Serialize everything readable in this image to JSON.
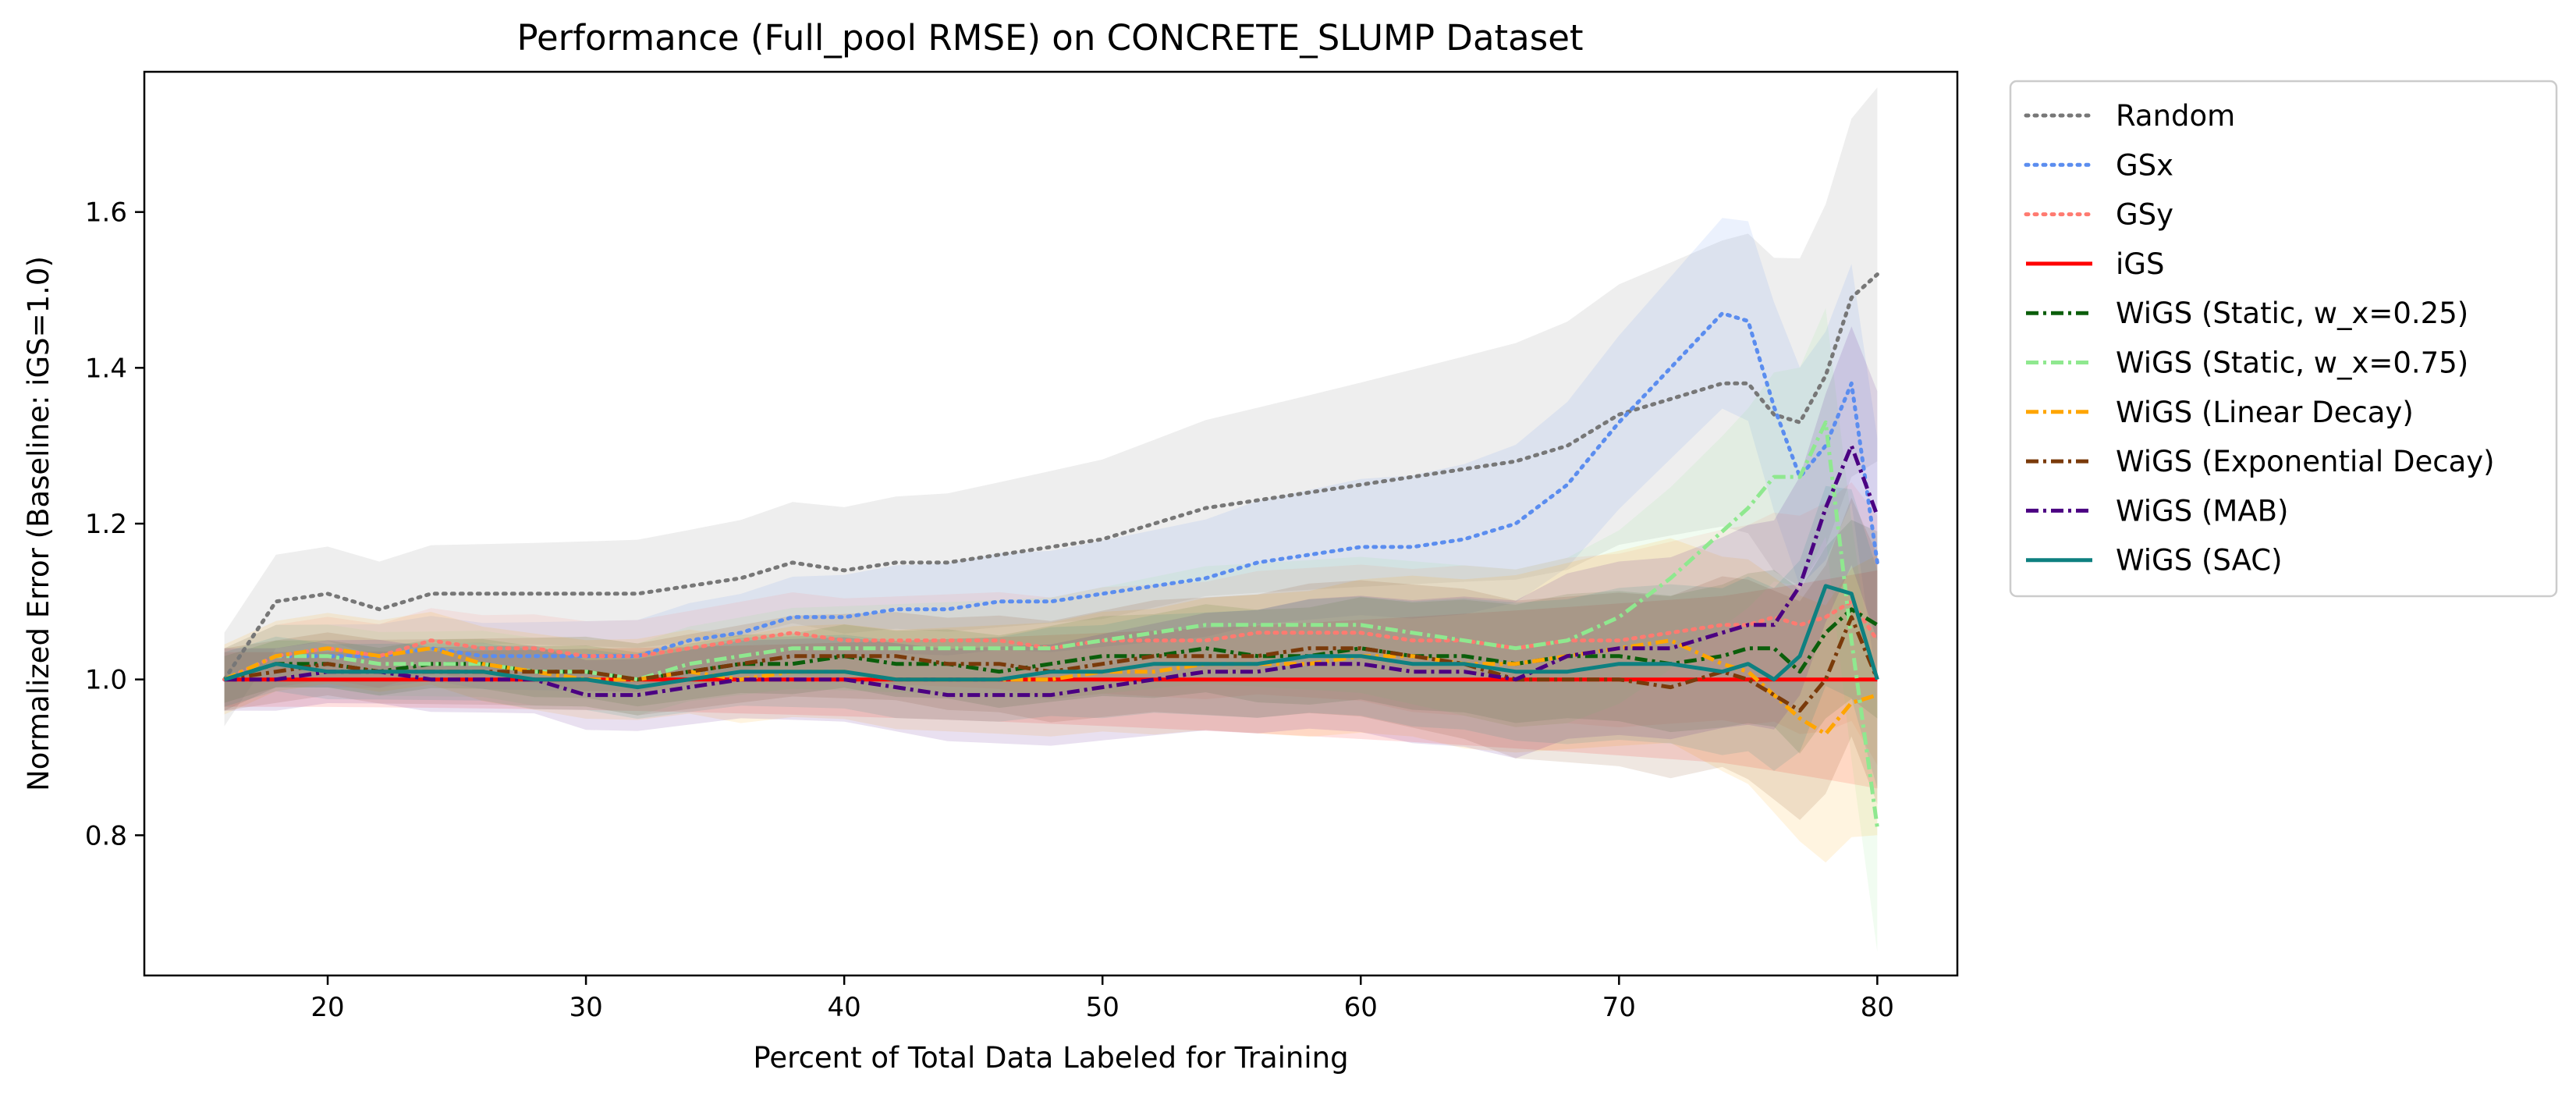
{
  "chart_data": {
    "type": "line",
    "title": "Performance (Full_pool RMSE) on CONCRETE_SLUMP Dataset",
    "xlabel": "Percent of Total Data Labeled for Training",
    "ylabel": "Normalized Error (Baseline: iGS=1.0)",
    "xlim": [
      12.9,
      83.1
    ],
    "ylim": [
      0.62,
      1.78
    ],
    "xticks": [
      20,
      30,
      40,
      50,
      60,
      70,
      80
    ],
    "yticks": [
      0.8,
      1.0,
      1.2,
      1.4,
      1.6
    ],
    "grid": false,
    "legend_position": "outside-right",
    "x": [
      16,
      18,
      20,
      22,
      24,
      26,
      28,
      30,
      32,
      34,
      36,
      38,
      40,
      42,
      44,
      46,
      48,
      50,
      52,
      54,
      56,
      58,
      60,
      62,
      64,
      66,
      68,
      70,
      72,
      74,
      75,
      76,
      77,
      78,
      79,
      80
    ],
    "series": [
      {
        "name": "Random",
        "color": "#777777",
        "style": "dotted",
        "band": 0.06,
        "values": [
          1.0,
          1.1,
          1.11,
          1.09,
          1.11,
          1.11,
          1.11,
          1.11,
          1.11,
          1.12,
          1.13,
          1.15,
          1.14,
          1.15,
          1.15,
          1.16,
          1.17,
          1.18,
          1.2,
          1.22,
          1.23,
          1.24,
          1.25,
          1.26,
          1.27,
          1.28,
          1.3,
          1.34,
          1.36,
          1.38,
          1.38,
          1.34,
          1.33,
          1.39,
          1.49,
          1.52
        ]
      },
      {
        "name": "GSx",
        "color": "#5b8def",
        "style": "dotted",
        "band": 0.04,
        "values": [
          1.0,
          1.03,
          1.03,
          1.03,
          1.04,
          1.03,
          1.03,
          1.03,
          1.03,
          1.05,
          1.06,
          1.08,
          1.08,
          1.09,
          1.09,
          1.1,
          1.1,
          1.11,
          1.12,
          1.13,
          1.15,
          1.16,
          1.17,
          1.17,
          1.18,
          1.2,
          1.25,
          1.33,
          1.4,
          1.47,
          1.46,
          1.35,
          1.26,
          1.3,
          1.38,
          1.15
        ]
      },
      {
        "name": "GSy",
        "color": "#ff7a70",
        "style": "dotted",
        "band": 0.04,
        "values": [
          1.0,
          1.03,
          1.04,
          1.03,
          1.05,
          1.04,
          1.04,
          1.03,
          1.03,
          1.04,
          1.05,
          1.06,
          1.05,
          1.05,
          1.05,
          1.05,
          1.04,
          1.05,
          1.05,
          1.05,
          1.06,
          1.06,
          1.06,
          1.05,
          1.05,
          1.04,
          1.05,
          1.05,
          1.06,
          1.07,
          1.07,
          1.08,
          1.07,
          1.08,
          1.1,
          1.05
        ]
      },
      {
        "name": "iGS",
        "color": "#ff0000",
        "style": "solid",
        "band": 0.035,
        "values": [
          1.0,
          1.0,
          1.0,
          1.0,
          1.0,
          1.0,
          1.0,
          1.0,
          1.0,
          1.0,
          1.0,
          1.0,
          1.0,
          1.0,
          1.0,
          1.0,
          1.0,
          1.0,
          1.0,
          1.0,
          1.0,
          1.0,
          1.0,
          1.0,
          1.0,
          1.0,
          1.0,
          1.0,
          1.0,
          1.0,
          1.0,
          1.0,
          1.0,
          1.0,
          1.0,
          1.0
        ]
      },
      {
        "name": "WiGS (Static, w_x=0.25)",
        "color": "#0b5e0b",
        "style": "dashdot",
        "band": 0.03,
        "values": [
          1.0,
          1.02,
          1.02,
          1.01,
          1.02,
          1.02,
          1.01,
          1.01,
          1.0,
          1.01,
          1.02,
          1.02,
          1.03,
          1.02,
          1.02,
          1.01,
          1.02,
          1.03,
          1.03,
          1.04,
          1.03,
          1.03,
          1.04,
          1.03,
          1.03,
          1.02,
          1.03,
          1.03,
          1.02,
          1.03,
          1.04,
          1.04,
          1.01,
          1.06,
          1.09,
          1.07
        ]
      },
      {
        "name": "WiGS (Static, w_x=0.75)",
        "color": "#8fe88f",
        "style": "dashdot",
        "band": 0.04,
        "values": [
          1.0,
          1.03,
          1.03,
          1.02,
          1.02,
          1.02,
          1.01,
          1.01,
          1.0,
          1.02,
          1.03,
          1.04,
          1.04,
          1.04,
          1.04,
          1.04,
          1.04,
          1.05,
          1.06,
          1.07,
          1.07,
          1.07,
          1.07,
          1.06,
          1.05,
          1.04,
          1.05,
          1.08,
          1.13,
          1.19,
          1.22,
          1.26,
          1.26,
          1.33,
          1.05,
          0.81
        ]
      },
      {
        "name": "WiGS (Linear Decay)",
        "color": "#ffa500",
        "style": "dashdot",
        "band": 0.045,
        "values": [
          1.0,
          1.03,
          1.04,
          1.03,
          1.04,
          1.02,
          1.01,
          1.0,
          1.0,
          1.01,
          1.0,
          1.01,
          1.01,
          1.0,
          1.0,
          1.0,
          1.0,
          1.01,
          1.01,
          1.02,
          1.02,
          1.02,
          1.03,
          1.03,
          1.02,
          1.02,
          1.03,
          1.04,
          1.05,
          1.02,
          1.01,
          0.98,
          0.95,
          0.93,
          0.97,
          0.98
        ]
      },
      {
        "name": "WiGS (Exponential Decay)",
        "color": "#7a3a0a",
        "style": "dashdot",
        "band": 0.04,
        "values": [
          1.0,
          1.01,
          1.02,
          1.01,
          1.01,
          1.01,
          1.01,
          1.01,
          1.0,
          1.01,
          1.02,
          1.03,
          1.03,
          1.03,
          1.02,
          1.02,
          1.01,
          1.02,
          1.03,
          1.03,
          1.03,
          1.04,
          1.04,
          1.03,
          1.02,
          1.0,
          1.0,
          1.0,
          0.99,
          1.01,
          1.0,
          0.98,
          0.96,
          1.0,
          1.08,
          1.0
        ]
      },
      {
        "name": "WiGS (MAB)",
        "color": "#4b0082",
        "style": "dashdot",
        "band": 0.04,
        "values": [
          1.0,
          1.0,
          1.01,
          1.01,
          1.0,
          1.0,
          1.0,
          0.98,
          0.98,
          0.99,
          1.0,
          1.0,
          1.0,
          0.99,
          0.98,
          0.98,
          0.98,
          0.99,
          1.0,
          1.01,
          1.01,
          1.02,
          1.02,
          1.01,
          1.01,
          1.0,
          1.03,
          1.04,
          1.04,
          1.06,
          1.07,
          1.07,
          1.12,
          1.22,
          1.3,
          1.21
        ]
      },
      {
        "name": "WiGS (SAC)",
        "color": "#0e8080",
        "style": "solid",
        "band": 0.035,
        "values": [
          1.0,
          1.02,
          1.01,
          1.01,
          1.01,
          1.01,
          1.0,
          1.0,
          0.99,
          1.0,
          1.01,
          1.01,
          1.01,
          1.0,
          1.0,
          1.0,
          1.01,
          1.01,
          1.02,
          1.02,
          1.02,
          1.03,
          1.03,
          1.02,
          1.02,
          1.01,
          1.01,
          1.02,
          1.02,
          1.01,
          1.02,
          1.0,
          1.03,
          1.12,
          1.11,
          1.0
        ]
      }
    ]
  }
}
